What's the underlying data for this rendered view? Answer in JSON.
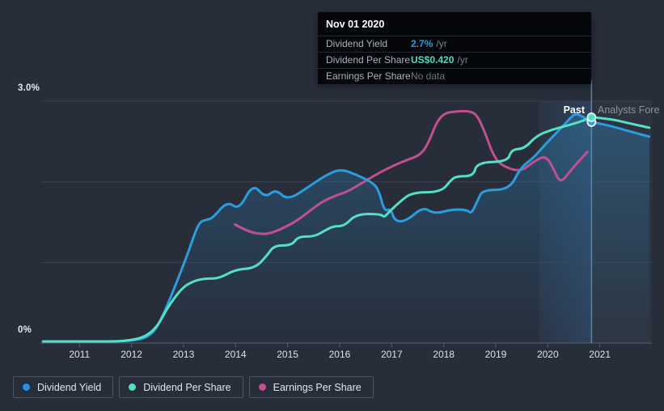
{
  "tooltip": {
    "title": "Nov 01 2020",
    "rows": [
      {
        "label": "Dividend Yield",
        "value": "2.7%",
        "suffix": "/yr",
        "value_color": "#2b9dde",
        "bold": true
      },
      {
        "label": "Dividend Per Share",
        "value": "US$0.420",
        "suffix": "/yr",
        "value_color": "#50dcc3",
        "bold": true
      },
      {
        "label": "Earnings Per Share",
        "value": "No data",
        "suffix": "",
        "value_color": "#6f7683",
        "bold": false
      }
    ]
  },
  "annotations": {
    "past_label": "Past",
    "forecast_label": "Analysts Fore"
  },
  "legend": [
    {
      "label": "Dividend Yield",
      "color": "#2193e0"
    },
    {
      "label": "Dividend Per Share",
      "color": "#52e0c4"
    },
    {
      "label": "Earnings Per Share",
      "color": "#c2508f"
    }
  ],
  "colors": {
    "background": "#272d39",
    "gridline": "#3a4150",
    "axis": "#58606e",
    "dividend_yield": "#2b9dde",
    "dividend_per_share": "#55dfc5",
    "earnings_per_share": "#c0508f",
    "divider": "#5f8fc4",
    "highlight_band": "rgba(72,138,210,0.16)",
    "forecast_panel": "rgba(190,210,235,0.045)",
    "area_fill_top": "rgba(47,127,180,0.42)",
    "area_fill_bottom": "rgba(47,127,180,0.02)"
  },
  "chart_data": {
    "type": "line",
    "title": "Dividend history and forecast",
    "x_axis": {
      "min": 2010.25,
      "max": 2022.0,
      "ticks": [
        2011,
        2012,
        2013,
        2014,
        2015,
        2016,
        2017,
        2018,
        2019,
        2020,
        2021
      ]
    },
    "y_axis": {
      "min": 0,
      "max": 3,
      "unit": "%",
      "ticks": [
        {
          "label": "3.0%",
          "value": 3.0
        },
        {
          "label": "0%",
          "value": 0
        }
      ],
      "gridlines": [
        3,
        2,
        1
      ]
    },
    "divider_x": 2020.84,
    "highlight_band": {
      "start": 2019.84,
      "end": 2020.84
    },
    "legend_position": "bottom-left",
    "grid": true,
    "series": [
      {
        "name": "Earnings Per Share",
        "color": "#c0508f",
        "region": "past",
        "points": [
          [
            2013.99,
            1.47
          ],
          [
            2014.22,
            1.39
          ],
          [
            2014.46,
            1.35
          ],
          [
            2014.69,
            1.36
          ],
          [
            2015.12,
            1.49
          ],
          [
            2015.39,
            1.62
          ],
          [
            2015.65,
            1.75
          ],
          [
            2015.93,
            1.83
          ],
          [
            2016.16,
            1.88
          ],
          [
            2016.47,
            2.0
          ],
          [
            2016.78,
            2.12
          ],
          [
            2017.2,
            2.25
          ],
          [
            2017.56,
            2.33
          ],
          [
            2017.72,
            2.5
          ],
          [
            2017.87,
            2.75
          ],
          [
            2018.02,
            2.85
          ],
          [
            2018.18,
            2.87
          ],
          [
            2018.49,
            2.88
          ],
          [
            2018.64,
            2.83
          ],
          [
            2018.8,
            2.6
          ],
          [
            2018.95,
            2.33
          ],
          [
            2019.11,
            2.2
          ],
          [
            2019.47,
            2.12
          ],
          [
            2019.73,
            2.25
          ],
          [
            2019.96,
            2.33
          ],
          [
            2020.12,
            2.15
          ],
          [
            2020.24,
            1.98
          ],
          [
            2020.43,
            2.13
          ],
          [
            2020.59,
            2.25
          ],
          [
            2020.76,
            2.37
          ]
        ]
      },
      {
        "name": "Dividend Yield",
        "color": "#2b9dde",
        "region": "past",
        "fill": true,
        "points": [
          [
            2010.3,
            0.02
          ],
          [
            2011.0,
            0.02
          ],
          [
            2012.05,
            0.02
          ],
          [
            2012.4,
            0.1
          ],
          [
            2012.6,
            0.33
          ],
          [
            2012.86,
            0.74
          ],
          [
            2013.09,
            1.12
          ],
          [
            2013.29,
            1.5
          ],
          [
            2013.45,
            1.53
          ],
          [
            2013.56,
            1.55
          ],
          [
            2013.84,
            1.76
          ],
          [
            2014.07,
            1.65
          ],
          [
            2014.33,
            1.98
          ],
          [
            2014.57,
            1.8
          ],
          [
            2014.77,
            1.91
          ],
          [
            2015.0,
            1.77
          ],
          [
            2015.39,
            1.93
          ],
          [
            2015.7,
            2.07
          ],
          [
            2016.01,
            2.16
          ],
          [
            2016.32,
            2.09
          ],
          [
            2016.63,
            1.99
          ],
          [
            2016.75,
            1.9
          ],
          [
            2016.86,
            1.63
          ],
          [
            2016.98,
            1.67
          ],
          [
            2017.06,
            1.51
          ],
          [
            2017.28,
            1.51
          ],
          [
            2017.6,
            1.69
          ],
          [
            2017.82,
            1.6
          ],
          [
            2018.18,
            1.66
          ],
          [
            2018.46,
            1.65
          ],
          [
            2018.53,
            1.6
          ],
          [
            2018.66,
            1.78
          ],
          [
            2018.75,
            1.9
          ],
          [
            2019.26,
            1.9
          ],
          [
            2019.47,
            2.17
          ],
          [
            2019.73,
            2.3
          ],
          [
            2019.96,
            2.47
          ],
          [
            2020.19,
            2.62
          ],
          [
            2020.4,
            2.77
          ],
          [
            2020.53,
            2.85
          ],
          [
            2020.66,
            2.81
          ],
          [
            2020.84,
            2.74
          ]
        ]
      },
      {
        "name": "Dividend Yield Forecast",
        "color": "#2b9dde",
        "region": "forecast",
        "points": [
          [
            2020.84,
            2.74
          ],
          [
            2021.1,
            2.71
          ],
          [
            2021.5,
            2.64
          ],
          [
            2021.95,
            2.56
          ]
        ]
      },
      {
        "name": "Dividend Per Share",
        "color": "#55dfc5",
        "region": "past",
        "points": [
          [
            2010.3,
            0.02
          ],
          [
            2011.0,
            0.02
          ],
          [
            2012.05,
            0.02
          ],
          [
            2012.45,
            0.15
          ],
          [
            2012.7,
            0.45
          ],
          [
            2012.98,
            0.69
          ],
          [
            2013.2,
            0.77
          ],
          [
            2013.4,
            0.8
          ],
          [
            2013.68,
            0.8
          ],
          [
            2013.99,
            0.91
          ],
          [
            2014.38,
            0.93
          ],
          [
            2014.61,
            1.09
          ],
          [
            2014.74,
            1.21
          ],
          [
            2015.08,
            1.21
          ],
          [
            2015.2,
            1.32
          ],
          [
            2015.51,
            1.32
          ],
          [
            2015.7,
            1.39
          ],
          [
            2015.88,
            1.45
          ],
          [
            2016.09,
            1.45
          ],
          [
            2016.32,
            1.6
          ],
          [
            2016.78,
            1.6
          ],
          [
            2016.86,
            1.56
          ],
          [
            2016.94,
            1.62
          ],
          [
            2017.17,
            1.76
          ],
          [
            2017.4,
            1.87
          ],
          [
            2017.95,
            1.87
          ],
          [
            2018.15,
            2.03
          ],
          [
            2018.26,
            2.07
          ],
          [
            2018.57,
            2.07
          ],
          [
            2018.64,
            2.24
          ],
          [
            2019.23,
            2.25
          ],
          [
            2019.3,
            2.4
          ],
          [
            2019.55,
            2.41
          ],
          [
            2019.78,
            2.57
          ],
          [
            2020.09,
            2.65
          ],
          [
            2020.4,
            2.7
          ],
          [
            2020.74,
            2.77
          ],
          [
            2020.84,
            2.8
          ]
        ]
      },
      {
        "name": "Dividend Per Share Forecast",
        "color": "#55dfc5",
        "region": "forecast",
        "points": [
          [
            2020.84,
            2.8
          ],
          [
            2021.2,
            2.78
          ],
          [
            2021.6,
            2.72
          ],
          [
            2021.95,
            2.67
          ]
        ]
      }
    ],
    "markers": [
      {
        "series": "Dividend Yield",
        "x": 2020.84,
        "y": 2.74,
        "color": "#2b9dde",
        "ring": "#ffffff"
      },
      {
        "series": "Dividend Per Share",
        "x": 2020.84,
        "y": 2.8,
        "color": "#55dfc5",
        "ring": "#d9f5ee"
      }
    ]
  }
}
